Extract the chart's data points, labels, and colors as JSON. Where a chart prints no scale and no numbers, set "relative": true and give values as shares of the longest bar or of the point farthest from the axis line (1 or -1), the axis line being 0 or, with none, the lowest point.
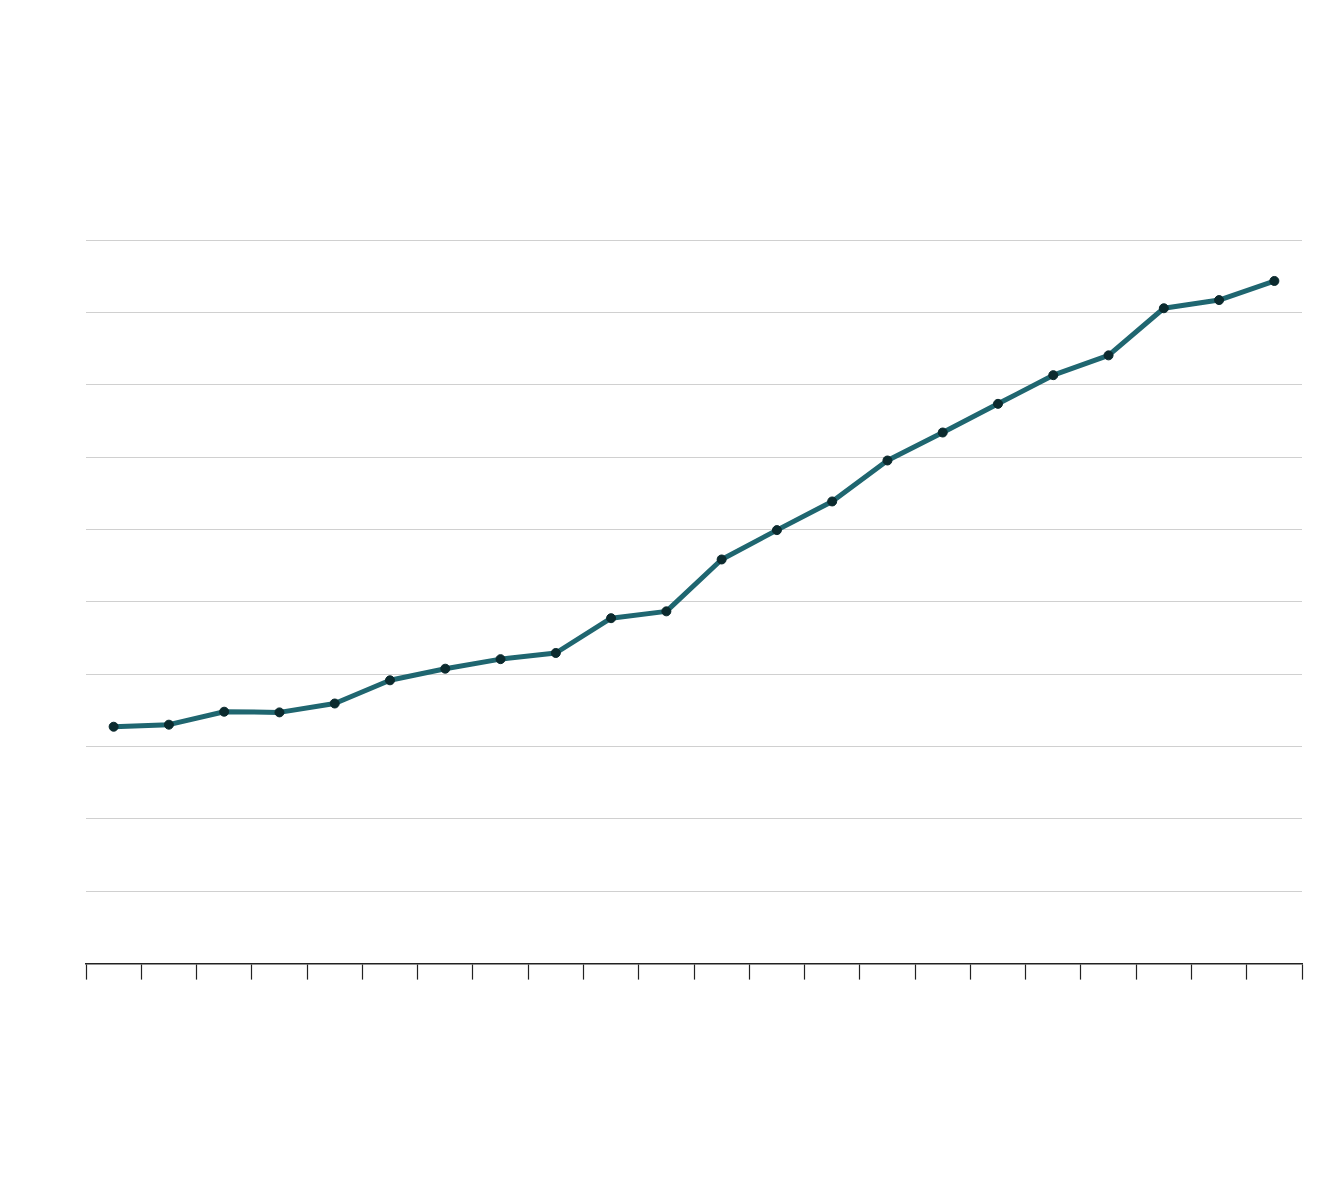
{
  "chart_data": {
    "type": "line",
    "relative": true,
    "categories": [
      null,
      null,
      null,
      null,
      null,
      null,
      null,
      null,
      null,
      null,
      null,
      null,
      null,
      null,
      null,
      null,
      null,
      null,
      null,
      null,
      null,
      null
    ],
    "series": [
      {
        "color": "#1f6670",
        "values": [
          0.347,
          0.35,
          0.369,
          0.368,
          0.381,
          0.415,
          0.432,
          0.446,
          0.455,
          0.506,
          0.516,
          0.592,
          0.635,
          0.677,
          0.737,
          0.778,
          0.82,
          0.862,
          0.891,
          0.96,
          0.972,
          1
        ]
      }
    ],
    "grid": "y",
    "marker": "circle",
    "line_style": "solid",
    "legend": false
  }
}
